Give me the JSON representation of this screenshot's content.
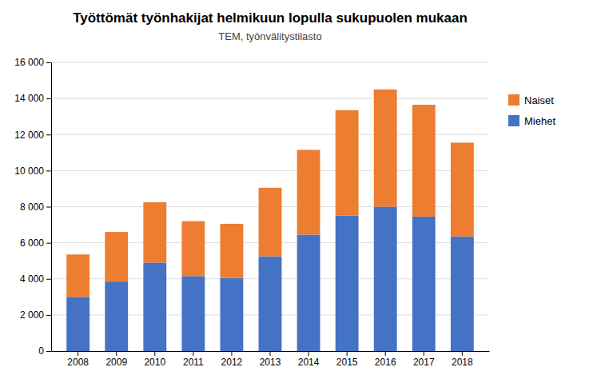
{
  "chart_data": {
    "type": "bar",
    "stacked": true,
    "title": "Työttömät työnhakijat helmikuun lopulla sukupuolen mukaan",
    "subtitle": "TEM, työnvälitystilasto",
    "categories": [
      "2008",
      "2009",
      "2010",
      "2011",
      "2012",
      "2013",
      "2014",
      "2015",
      "2016",
      "2017",
      "2018"
    ],
    "series": [
      {
        "name": "Miehet",
        "color": "#4472C4",
        "values": [
          3000,
          3850,
          4900,
          4150,
          4050,
          5250,
          6450,
          7500,
          8000,
          7450,
          6350
        ]
      },
      {
        "name": "Naiset",
        "color": "#ED7D31",
        "values": [
          2350,
          2750,
          3350,
          3050,
          3000,
          3800,
          4700,
          5850,
          6500,
          6200,
          5200
        ]
      }
    ],
    "ylim": [
      0,
      16000
    ],
    "yticks": [
      0,
      {
        "value": 2000,
        "label": "2 000"
      },
      {
        "value": 4000,
        "label": "4 000"
      },
      {
        "value": 6000,
        "label": "6 000"
      },
      {
        "value": 8000,
        "label": "8 000"
      },
      {
        "value": 10000,
        "label": "10 000"
      },
      {
        "value": 12000,
        "label": "12 000"
      },
      {
        "value": 14000,
        "label": "14 000"
      },
      {
        "value": 16000,
        "label": "16 000"
      }
    ],
    "grid": true,
    "legend": "right"
  }
}
